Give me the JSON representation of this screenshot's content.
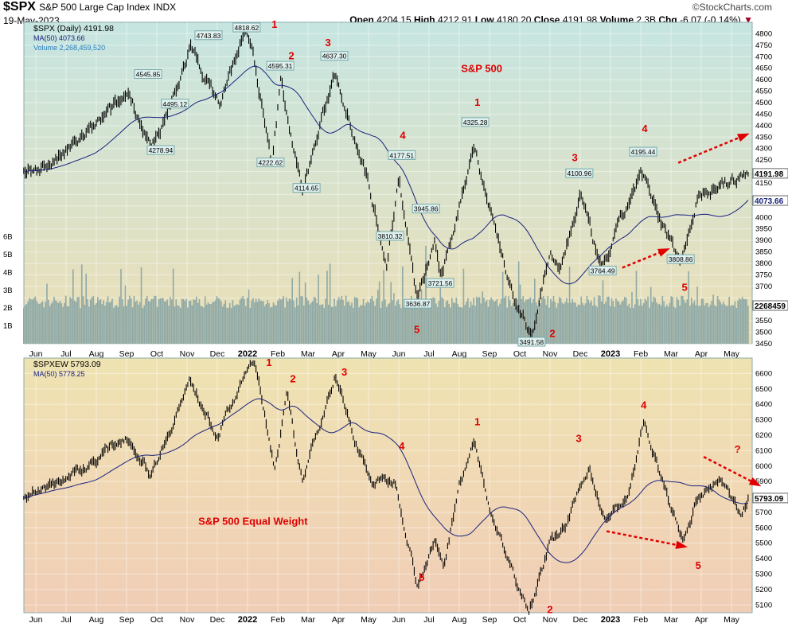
{
  "header": {
    "symbol": "$SPX",
    "name": "S&P 500 Large Cap Index",
    "exchange": "INDX",
    "date": "19-May-2023",
    "brand": "©StockCharts.com",
    "open_label": "Open",
    "open": "4204.15",
    "high_label": "High",
    "high": "4212.91",
    "low_label": "Low",
    "low": "4180.20",
    "close_label": "Close",
    "close": "4191.98",
    "volume_label": "Volume",
    "volume": "2.3B",
    "chg_label": "Chg",
    "chg": "-6.07 (-0.14%)"
  },
  "colors": {
    "price": "#000000",
    "ma": "#1a237e",
    "volume": "#8fa9a6",
    "annotation": "#e00000",
    "top_bg1": "#c6e5e1",
    "top_bg2": "#ecdfb6",
    "bot_bg1": "#efe3b2",
    "bot_bg2": "#f0cdb6"
  },
  "chart_data": {
    "type": "line",
    "x_unit": "months since Jun 2021",
    "month_labels": [
      [
        "Jun",
        0
      ],
      [
        "Jul",
        1
      ],
      [
        "Aug",
        2
      ],
      [
        "Sep",
        3
      ],
      [
        "Oct",
        4
      ],
      [
        "Nov",
        5
      ],
      [
        "Dec",
        6
      ],
      [
        "2022",
        7
      ],
      [
        "Feb",
        8
      ],
      [
        "Mar",
        9
      ],
      [
        "Apr",
        10
      ],
      [
        "May",
        11
      ],
      [
        "Jun",
        12
      ],
      [
        "Jul",
        13
      ],
      [
        "Aug",
        14
      ],
      [
        "Sep",
        15
      ],
      [
        "Oct",
        16
      ],
      [
        "Nov",
        17
      ],
      [
        "Dec",
        18
      ],
      [
        "2023",
        19
      ],
      [
        "Feb",
        20
      ],
      [
        "Mar",
        21
      ],
      [
        "Apr",
        22
      ],
      [
        "May",
        23
      ]
    ],
    "panels": [
      {
        "legend": [
          "$SPX (Daily) 4191.98",
          "MA(50) 4073.66",
          "Volume 2,268,459,520"
        ],
        "ylim": [
          3450,
          4850
        ],
        "ystep": 50,
        "vol_ticks": [
          "1B",
          "2B",
          "3B",
          "4B",
          "5B",
          "6B"
        ],
        "last_price": "4191.98",
        "last_ma": "4073.66",
        "last_volume": "2268459",
        "anchors": [
          [
            -0.4,
            4190
          ],
          [
            0.7,
            4250
          ],
          [
            2,
            4400
          ],
          [
            3.1,
            4545
          ],
          [
            3.8,
            4300
          ],
          [
            4.1,
            4350
          ],
          [
            5.1,
            4740
          ],
          [
            5.8,
            4560
          ],
          [
            6.1,
            4495
          ],
          [
            6.9,
            4818
          ],
          [
            7.2,
            4700
          ],
          [
            7.8,
            4222
          ],
          [
            8.1,
            4595
          ],
          [
            8.8,
            4114
          ],
          [
            9.2,
            4300
          ],
          [
            9.9,
            4637
          ],
          [
            10.4,
            4420
          ],
          [
            10.9,
            4200
          ],
          [
            11.6,
            3810
          ],
          [
            12,
            4177
          ],
          [
            12.6,
            3636
          ],
          [
            13.2,
            3900
          ],
          [
            13.4,
            3722
          ],
          [
            13.9,
            4000
          ],
          [
            14.5,
            4325
          ],
          [
            14.9,
            4100
          ],
          [
            15.1,
            4000
          ],
          [
            15.9,
            3600
          ],
          [
            16.4,
            3491
          ],
          [
            17,
            3850
          ],
          [
            17.3,
            3750
          ],
          [
            18,
            4100
          ],
          [
            18.7,
            3764
          ],
          [
            19.1,
            3900
          ],
          [
            20,
            4195
          ],
          [
            20.6,
            4000
          ],
          [
            21.3,
            3808
          ],
          [
            21.9,
            4100
          ],
          [
            22.9,
            4150
          ],
          [
            23.55,
            4191
          ]
        ],
        "title_text": {
          "text": "S&P 500",
          "t": 14.74,
          "p": 4634
        },
        "price_labels": [
          [
            "4818.62",
            6.97,
            4854
          ],
          [
            "4743.83",
            5.71,
            4785
          ],
          [
            "4545.85",
            3.71,
            4616
          ],
          [
            "4595.31",
            8.08,
            4652
          ],
          [
            "4637.30",
            9.87,
            4695
          ],
          [
            "4495.12",
            4.6,
            4487
          ],
          [
            "4278.94",
            4.13,
            4285
          ],
          [
            "4222.62",
            7.76,
            4231
          ],
          [
            "4114.65",
            8.95,
            4120
          ],
          [
            "4177.51",
            12.1,
            4263
          ],
          [
            "3945.86",
            12.9,
            4030
          ],
          [
            "3810.32",
            11.71,
            3911
          ],
          [
            "3721.56",
            13.37,
            3706
          ],
          [
            "3636.87",
            12.63,
            3616
          ],
          [
            "4325.28",
            14.53,
            4407
          ],
          [
            "3491.58",
            16.39,
            3450
          ],
          [
            "4100.96",
            17.97,
            4184
          ],
          [
            "3764.49",
            18.74,
            3760
          ],
          [
            "4195.44",
            20.08,
            4278
          ],
          [
            "3808.86",
            21.32,
            3810
          ]
        ],
        "wave_labels": [
          [
            "1",
            7.89,
            4825
          ],
          [
            "2",
            8.45,
            4688
          ],
          [
            "3",
            9.66,
            4746
          ],
          [
            "1",
            14.6,
            4487
          ],
          [
            "4",
            12.13,
            4343
          ],
          [
            "3",
            17.82,
            4245
          ],
          [
            "4",
            20.13,
            4371
          ],
          [
            "5",
            12.6,
            3497
          ],
          [
            "2",
            17.08,
            3479
          ],
          [
            "5",
            21.45,
            3680
          ]
        ],
        "arrows": [
          [
            21.24,
            4238,
            23.5,
            4361
          ],
          [
            19.39,
            3781,
            20.87,
            3860
          ]
        ]
      },
      {
        "legend": [
          "$SPXEW 5793.09",
          "MA(50) 5778.25"
        ],
        "ylim": [
          5050,
          6700
        ],
        "ystep": 100,
        "last_price": "5793.09",
        "anchors": [
          [
            -0.4,
            5800
          ],
          [
            0.7,
            5900
          ],
          [
            1.7,
            6000
          ],
          [
            3,
            6200
          ],
          [
            3.8,
            5950
          ],
          [
            5.1,
            6550
          ],
          [
            6,
            6200
          ],
          [
            7.2,
            6700
          ],
          [
            7.9,
            6000
          ],
          [
            8.3,
            6450
          ],
          [
            8.8,
            5900
          ],
          [
            9.9,
            6600
          ],
          [
            10.5,
            6200
          ],
          [
            11.1,
            5900
          ],
          [
            11.9,
            5900
          ],
          [
            12.6,
            5250
          ],
          [
            13.2,
            5500
          ],
          [
            13.5,
            5350
          ],
          [
            14,
            5900
          ],
          [
            14.5,
            6150
          ],
          [
            15.1,
            5650
          ],
          [
            15.8,
            5300
          ],
          [
            16.3,
            5080
          ],
          [
            17,
            5500
          ],
          [
            17.5,
            5600
          ],
          [
            18.3,
            6000
          ],
          [
            18.8,
            5650
          ],
          [
            19.6,
            5800
          ],
          [
            20.1,
            6300
          ],
          [
            20.7,
            5900
          ],
          [
            21.4,
            5500
          ],
          [
            21.9,
            5800
          ],
          [
            22.6,
            5900
          ],
          [
            23.3,
            5700
          ],
          [
            23.55,
            5793
          ]
        ],
        "title_text": {
          "text": "S&P 500 Equal Weight",
          "t": 7.18,
          "p": 5621
        },
        "wave_labels": [
          [
            "1",
            7.71,
            6648
          ],
          [
            "2",
            8.5,
            6544
          ],
          [
            "3",
            10.2,
            6586
          ],
          [
            "1",
            14.6,
            6264
          ],
          [
            "4",
            12.1,
            6108
          ],
          [
            "3",
            17.95,
            6155
          ],
          [
            "4",
            20.1,
            6373
          ],
          [
            "?",
            23.2,
            6087
          ],
          [
            "5",
            12.76,
            5256
          ],
          [
            "2",
            17,
            5048
          ],
          [
            "5",
            21.9,
            5334
          ]
        ],
        "arrows": [
          [
            18.87,
            5578,
            21.45,
            5479
          ],
          [
            22.08,
            6060,
            23.89,
            5878
          ]
        ]
      }
    ]
  }
}
